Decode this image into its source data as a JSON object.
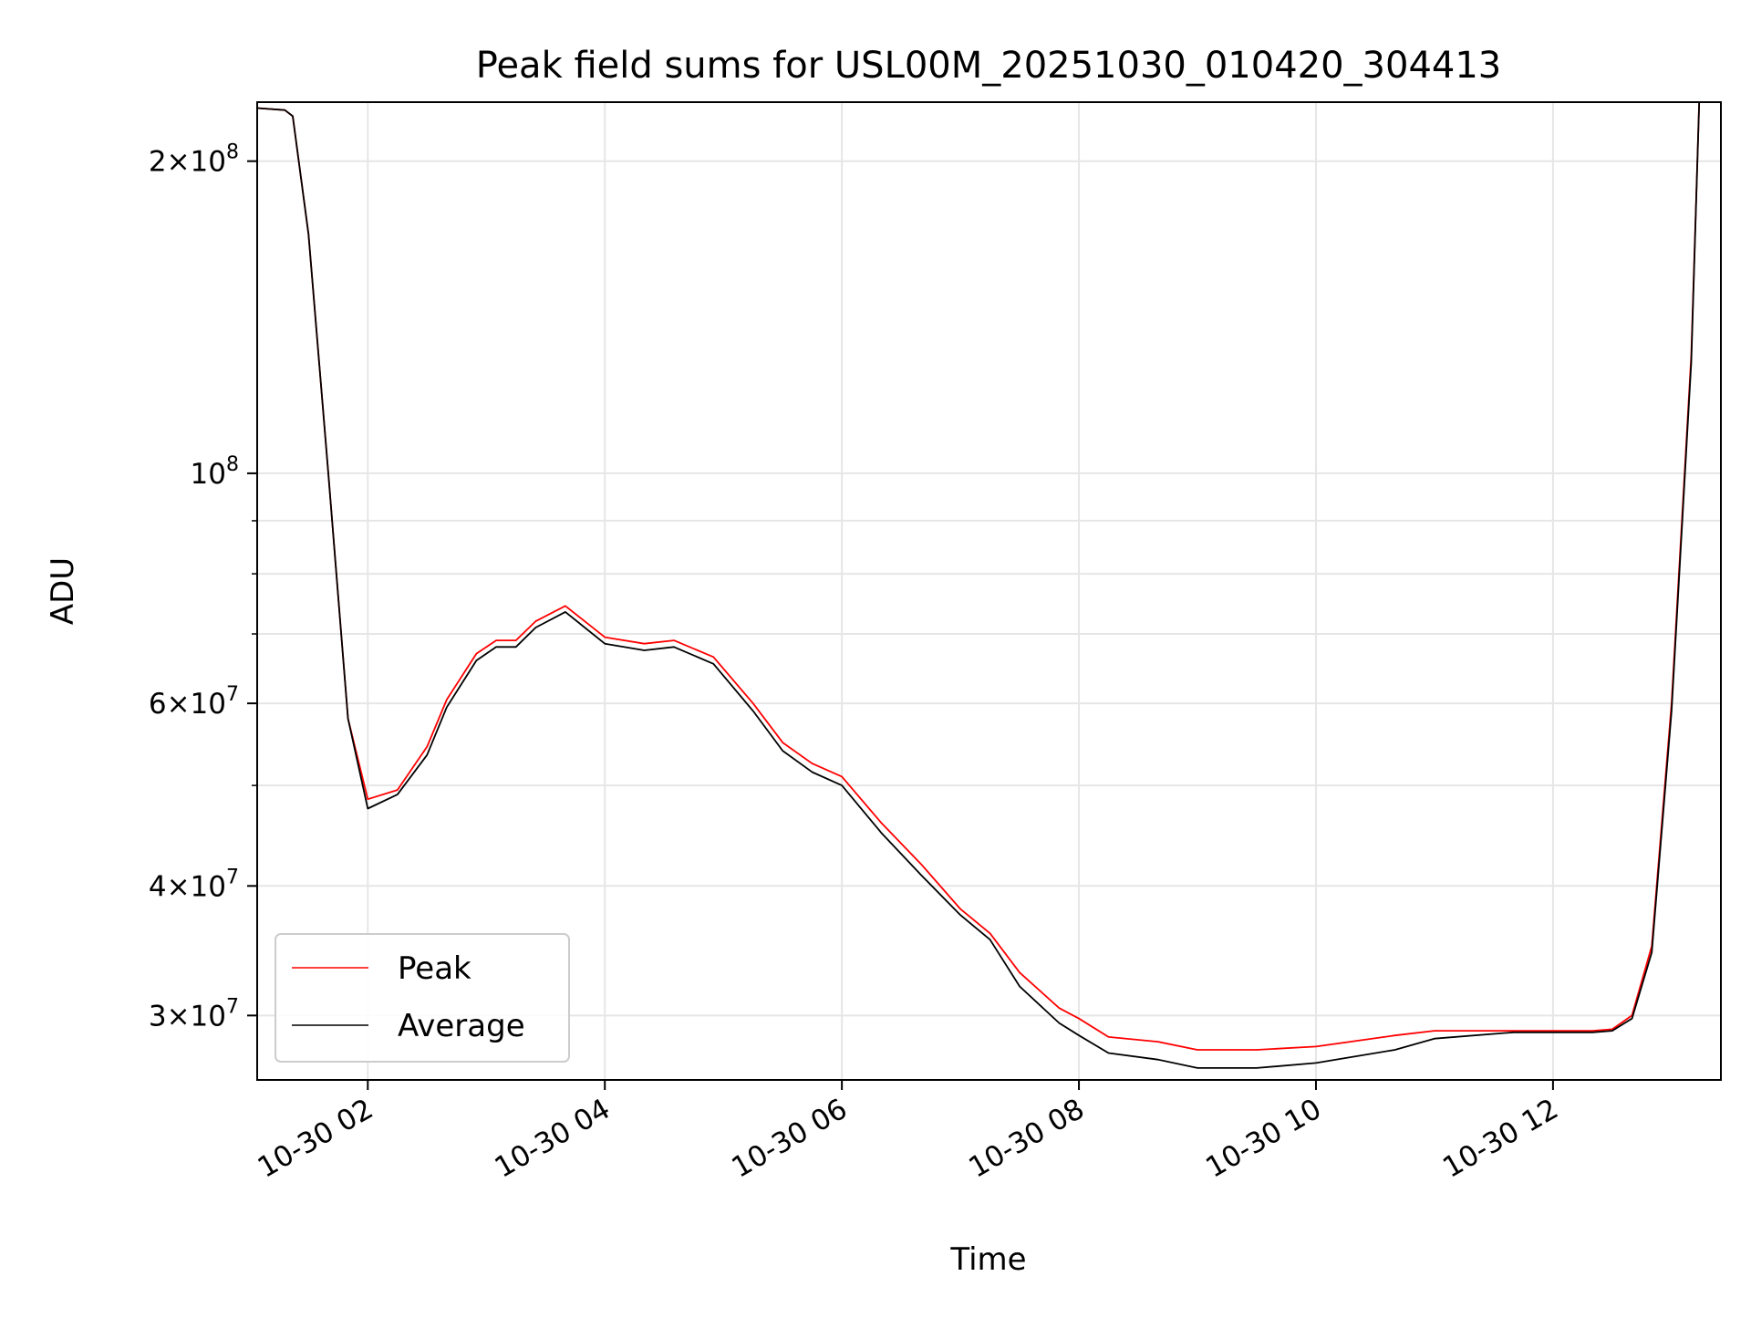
{
  "chart_data": {
    "type": "line",
    "title": "Peak field sums for USL00M_20251030_010420_304413",
    "xlabel": "Time",
    "ylabel": "ADU",
    "yscale": "log",
    "xlim": [
      "2025-10-30 01:04",
      "2025-10-30 13:25"
    ],
    "ylim": [
      26000000,
      228000000
    ],
    "grid": true,
    "legend_position": "lower-left",
    "colors": {
      "Peak": "#ff0000",
      "Average": "#000000"
    },
    "x_ticks": [
      {
        "value": "2025-10-30 02:00",
        "label": "10-30 02"
      },
      {
        "value": "2025-10-30 04:00",
        "label": "10-30 04"
      },
      {
        "value": "2025-10-30 06:00",
        "label": "10-30 06"
      },
      {
        "value": "2025-10-30 08:00",
        "label": "10-30 08"
      },
      {
        "value": "2025-10-30 10:00",
        "label": "10-30 10"
      },
      {
        "value": "2025-10-30 12:00",
        "label": "10-30 12"
      }
    ],
    "y_ticks": [
      {
        "value": 30000000,
        "base": "3",
        "exp": "7"
      },
      {
        "value": 40000000,
        "base": "4",
        "exp": "7"
      },
      {
        "value": 60000000,
        "base": "6",
        "exp": "7"
      },
      {
        "value": 100000000,
        "base": "",
        "exp": "8"
      },
      {
        "value": 200000000,
        "base": "2",
        "exp": "8"
      }
    ],
    "y_minor_ticks": [
      50000000,
      70000000,
      80000000,
      90000000
    ],
    "series": [
      {
        "name": "Peak",
        "x": [
          "2025-10-30 01:04",
          "2025-10-30 01:18",
          "2025-10-30 01:22",
          "2025-10-30 01:30",
          "2025-10-30 01:40",
          "2025-10-30 01:50",
          "2025-10-30 02:00",
          "2025-10-30 02:15",
          "2025-10-30 02:30",
          "2025-10-30 02:40",
          "2025-10-30 02:55",
          "2025-10-30 03:05",
          "2025-10-30 03:15",
          "2025-10-30 03:25",
          "2025-10-30 03:40",
          "2025-10-30 04:00",
          "2025-10-30 04:20",
          "2025-10-30 04:35",
          "2025-10-30 04:55",
          "2025-10-30 05:15",
          "2025-10-30 05:30",
          "2025-10-30 05:45",
          "2025-10-30 06:00",
          "2025-10-30 06:20",
          "2025-10-30 06:40",
          "2025-10-30 07:00",
          "2025-10-30 07:15",
          "2025-10-30 07:30",
          "2025-10-30 07:50",
          "2025-10-30 08:00",
          "2025-10-30 08:15",
          "2025-10-30 08:40",
          "2025-10-30 09:00",
          "2025-10-30 09:30",
          "2025-10-30 10:00",
          "2025-10-30 10:40",
          "2025-10-30 11:00",
          "2025-10-30 11:40",
          "2025-10-30 12:05",
          "2025-10-30 12:20",
          "2025-10-30 12:30",
          "2025-10-30 12:40",
          "2025-10-30 12:50",
          "2025-10-30 13:00",
          "2025-10-30 13:10",
          "2025-10-30 13:14",
          "2025-10-30 13:25"
        ],
        "y": [
          225000000,
          224000000,
          221000000,
          170000000,
          100000000,
          58000000,
          48500000,
          49500000,
          54500000,
          60500000,
          67000000,
          69000000,
          69000000,
          72000000,
          74500000,
          69500000,
          68500000,
          69000000,
          66500000,
          60000000,
          55000000,
          52500000,
          51000000,
          46000000,
          42000000,
          38000000,
          36000000,
          33000000,
          30500000,
          29800000,
          28600000,
          28300000,
          27800000,
          27800000,
          28000000,
          28700000,
          29000000,
          29000000,
          29000000,
          29000000,
          29100000,
          30000000,
          35000000,
          60000000,
          130000000,
          228000000,
          228000000
        ]
      },
      {
        "name": "Average",
        "x": [
          "2025-10-30 01:04",
          "2025-10-30 01:18",
          "2025-10-30 01:22",
          "2025-10-30 01:30",
          "2025-10-30 01:40",
          "2025-10-30 01:50",
          "2025-10-30 02:00",
          "2025-10-30 02:15",
          "2025-10-30 02:30",
          "2025-10-30 02:40",
          "2025-10-30 02:55",
          "2025-10-30 03:05",
          "2025-10-30 03:15",
          "2025-10-30 03:25",
          "2025-10-30 03:40",
          "2025-10-30 04:00",
          "2025-10-30 04:20",
          "2025-10-30 04:35",
          "2025-10-30 04:55",
          "2025-10-30 05:15",
          "2025-10-30 05:30",
          "2025-10-30 05:45",
          "2025-10-30 06:00",
          "2025-10-30 06:20",
          "2025-10-30 06:40",
          "2025-10-30 07:00",
          "2025-10-30 07:15",
          "2025-10-30 07:30",
          "2025-10-30 07:50",
          "2025-10-30 08:00",
          "2025-10-30 08:15",
          "2025-10-30 08:40",
          "2025-10-30 09:00",
          "2025-10-30 09:30",
          "2025-10-30 10:00",
          "2025-10-30 10:40",
          "2025-10-30 11:00",
          "2025-10-30 11:40",
          "2025-10-30 12:05",
          "2025-10-30 12:20",
          "2025-10-30 12:30",
          "2025-10-30 12:40",
          "2025-10-30 12:50",
          "2025-10-30 13:00",
          "2025-10-30 13:10",
          "2025-10-30 13:14",
          "2025-10-30 13:25"
        ],
        "y": [
          225000000,
          224000000,
          221000000,
          170000000,
          100000000,
          58000000,
          47500000,
          49000000,
          53500000,
          59500000,
          66000000,
          68000000,
          68000000,
          71000000,
          73500000,
          68500000,
          67500000,
          68000000,
          65500000,
          59000000,
          54000000,
          51500000,
          50000000,
          45000000,
          41000000,
          37500000,
          35500000,
          32000000,
          29500000,
          28700000,
          27600000,
          27200000,
          26700000,
          26700000,
          27000000,
          27800000,
          28500000,
          28900000,
          28900000,
          28900000,
          29000000,
          29800000,
          34500000,
          59000000,
          128000000,
          228000000,
          228000000
        ]
      }
    ]
  }
}
